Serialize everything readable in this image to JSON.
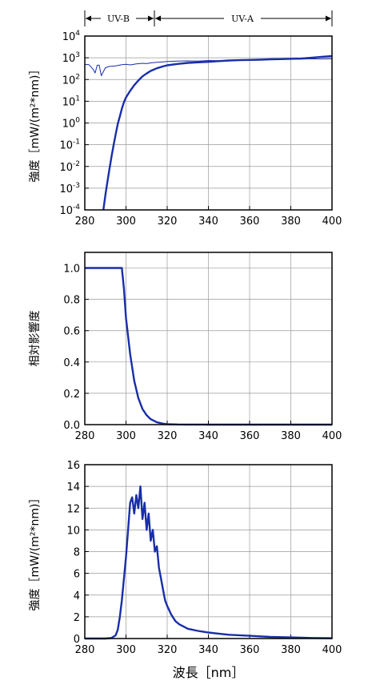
{
  "bands": [
    {
      "label": "UV-B",
      "from": 280,
      "to": 315
    },
    {
      "label": "UV-A",
      "from": 315,
      "to": 400
    }
  ],
  "chart_data": [
    {
      "type": "line",
      "panel": "solar-spectrum",
      "title": "",
      "xlabel": "",
      "ylabel": "強度［mW/(m²*nm)］",
      "xlim": [
        280,
        400
      ],
      "ylim": [
        0.0001,
        10000
      ],
      "yscale": "log",
      "grid": true,
      "xticks": [
        "280",
        "300",
        "320",
        "340",
        "360",
        "380",
        "400"
      ],
      "yticks": [
        {
          "base": "10",
          "exp": "4"
        },
        {
          "base": "10",
          "exp": "3"
        },
        {
          "base": "10",
          "exp": "2"
        },
        {
          "base": "10",
          "exp": "1"
        },
        {
          "base": "10",
          "exp": "0"
        },
        {
          "base": "10",
          "exp": "-1"
        },
        {
          "base": "10",
          "exp": "-2"
        },
        {
          "base": "10",
          "exp": "-3"
        },
        {
          "base": "10",
          "exp": "-4"
        }
      ],
      "series": [
        {
          "style": "thin",
          "color": "#1a2ea8",
          "x": [
            280,
            282,
            284,
            285,
            286,
            287,
            288,
            290,
            292,
            295,
            298,
            300,
            302,
            305,
            308,
            310,
            312,
            315,
            318,
            320,
            325,
            330,
            335,
            340,
            345,
            350,
            355,
            360,
            365,
            370,
            375,
            380,
            385,
            390,
            395,
            400
          ],
          "y": [
            500,
            480,
            300,
            200,
            450,
            460,
            150,
            350,
            400,
            420,
            480,
            500,
            470,
            520,
            560,
            540,
            580,
            620,
            650,
            680,
            700,
            720,
            700,
            750,
            740,
            780,
            760,
            800,
            820,
            830,
            850,
            860,
            870,
            900,
            880,
            900
          ]
        },
        {
          "style": "thick",
          "color": "#1a2ea8",
          "x": [
            289,
            290,
            291,
            292,
            293,
            294,
            295,
            296,
            297,
            298,
            299,
            300,
            302,
            304,
            306,
            308,
            310,
            312,
            315,
            318,
            320,
            325,
            330,
            335,
            340,
            345,
            350,
            355,
            360,
            365,
            370,
            375,
            380,
            385,
            390,
            395,
            400
          ],
          "y": [
            0.0001,
            0.0005,
            0.002,
            0.008,
            0.03,
            0.1,
            0.3,
            0.9,
            2,
            4.5,
            9,
            15,
            30,
            55,
            90,
            140,
            190,
            250,
            330,
            400,
            450,
            520,
            580,
            620,
            650,
            700,
            750,
            780,
            800,
            820,
            850,
            870,
            900,
            920,
            1000,
            1100,
            1200
          ]
        }
      ]
    },
    {
      "type": "line",
      "panel": "relative-effect",
      "title": "",
      "xlabel": "",
      "ylabel": "相対影響度",
      "xlim": [
        280,
        400
      ],
      "ylim": [
        0,
        1.1
      ],
      "grid": true,
      "xticks": [
        "280",
        "300",
        "320",
        "340",
        "360",
        "380",
        "400"
      ],
      "yticks": [
        "1.0",
        "0.8",
        "0.6",
        "0.4",
        "0.2",
        "0.0"
      ],
      "series": [
        {
          "color": "#1a2ea8",
          "x": [
            280,
            285,
            290,
            295,
            298,
            299,
            300,
            302,
            304,
            306,
            308,
            310,
            312,
            315,
            318,
            320,
            325,
            330,
            340,
            360,
            380,
            400
          ],
          "y": [
            1.0,
            1.0,
            1.0,
            1.0,
            1.0,
            0.87,
            0.68,
            0.45,
            0.28,
            0.17,
            0.1,
            0.06,
            0.035,
            0.015,
            0.006,
            0.003,
            0.001,
            0.0004,
            0.0001,
            0,
            0,
            0
          ]
        }
      ]
    },
    {
      "type": "line",
      "panel": "weighted-intensity",
      "title": "",
      "xlabel": "波長［nm］",
      "ylabel": "強度［mW/(m²*nm)］",
      "xlim": [
        280,
        400
      ],
      "ylim": [
        0,
        16
      ],
      "grid": true,
      "xticks": [
        "280",
        "300",
        "320",
        "340",
        "360",
        "380",
        "400"
      ],
      "yticks": [
        "16",
        "14",
        "12",
        "10",
        "8",
        "6",
        "4",
        "2",
        "0"
      ],
      "series": [
        {
          "color": "#1a2ea8",
          "x": [
            280,
            290,
            293,
            295,
            296,
            297,
            298,
            299,
            300,
            301,
            302,
            303,
            304,
            305,
            306,
            307,
            308,
            309,
            310,
            311,
            312,
            313,
            314,
            315,
            316,
            317,
            318,
            319,
            320,
            322,
            324,
            326,
            328,
            330,
            335,
            340,
            345,
            350,
            360,
            370,
            380,
            390,
            400
          ],
          "y": [
            0,
            0,
            0.05,
            0.3,
            0.8,
            2.0,
            3.5,
            5.5,
            7.5,
            10.0,
            12.5,
            13.0,
            11.5,
            13.2,
            12.0,
            14.0,
            11.0,
            12.5,
            10.0,
            11.5,
            9.0,
            10.0,
            8.0,
            8.5,
            6.5,
            5.5,
            4.5,
            3.5,
            3.0,
            2.2,
            1.6,
            1.3,
            1.1,
            0.9,
            0.7,
            0.55,
            0.45,
            0.35,
            0.25,
            0.15,
            0.1,
            0.05,
            0.03
          ]
        }
      ]
    }
  ]
}
